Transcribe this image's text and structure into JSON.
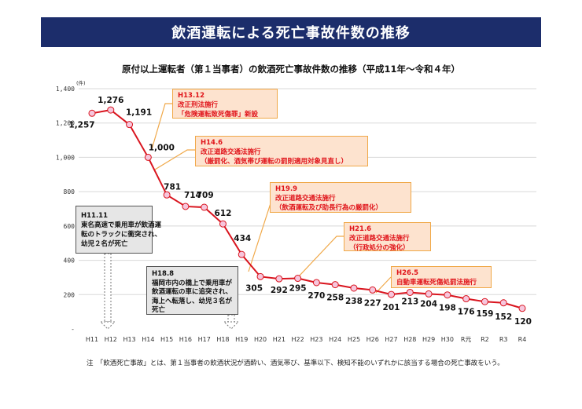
{
  "banner_title": "飲酒運転による死亡事故件数の推移",
  "chart_data": {
    "type": "line",
    "title": "原付以上運転者（第１当事者）の飲酒死亡事故件数の推移（平成11年～令和４年）",
    "ylabel": "(件)",
    "ylim": [
      0,
      1400
    ],
    "yticks": [
      "-",
      "200",
      "400",
      "600",
      "800",
      "1,000",
      "1,200",
      "1,400"
    ],
    "grid": true,
    "line_color": "#d9141e",
    "marker_color": "#f6c6dc",
    "categories": [
      "H11",
      "H12",
      "H13",
      "H14",
      "H15",
      "H16",
      "H17",
      "H18",
      "H19",
      "H20",
      "H21",
      "H22",
      "H23",
      "H24",
      "H25",
      "H26",
      "H27",
      "H28",
      "H29",
      "H30",
      "R元",
      "R2",
      "R3",
      "R4"
    ],
    "values": [
      1257,
      1276,
      1191,
      1000,
      781,
      714,
      709,
      612,
      434,
      305,
      292,
      295,
      270,
      258,
      238,
      227,
      201,
      213,
      204,
      198,
      176,
      159,
      152,
      120
    ],
    "data_labels": [
      "1,257",
      "1,276",
      "1,191",
      "1,000",
      "781",
      "714",
      "709",
      "612",
      "434",
      "305",
      "292",
      "295",
      "270",
      "258",
      "238",
      "227",
      "201",
      "213",
      "204",
      "198",
      "176",
      "159",
      "152",
      "120"
    ]
  },
  "callouts": [
    {
      "date": "H13.12",
      "text": "改正刑法施行\n「危険運転致死傷罪」新設"
    },
    {
      "date": "H14.6",
      "text": "改正道路交通法施行\n（厳罰化、酒気帯び運転の罰則適用対象見直し）"
    },
    {
      "date": "H19.9",
      "text": "改正道路交通法施行\n（飲酒運転及び助長行為の厳罰化）"
    },
    {
      "date": "H21.6",
      "text": "改正道路交通法施行\n（行政処分の強化）"
    },
    {
      "date": "H26.5",
      "text": "自動車運転死傷処罰法施行"
    }
  ],
  "incidents": [
    {
      "date": "H11.11",
      "text": "東名高速で乗用車が飲酒運\n転のトラックに衝突され、\n幼児２名が死亡"
    },
    {
      "date": "H18.8",
      "text": "福岡市内の橋上で乗用車が\n飲酒運転の車に追突され、\n海上へ転落し、幼児３名が\n死亡"
    }
  ],
  "note": "注　「飲酒死亡事故」とは、第１当事者の飲酒状況が酒酔い、酒気帯び、基準以下、検知不能のいずれかに該当する場合の死亡事故をいう。"
}
